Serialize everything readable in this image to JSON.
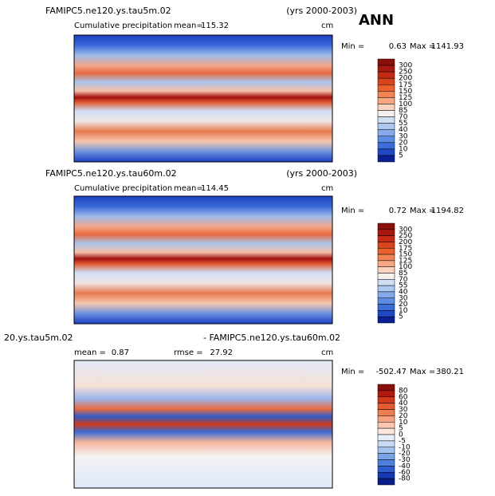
{
  "title": "ANN",
  "panels": [
    {
      "title_left": "FAMIPC5.ne120.ys.tau5m.02",
      "title_right": "(yrs 2000-2003)",
      "subtitle": "Cumulative precipitation",
      "stat1_label": "mean=",
      "stat1": 115.32,
      "units": "cm",
      "min_label": "Min =",
      "min": 0.63,
      "max_label": "Max =",
      "max": 1141.93,
      "colorbar": {
        "levels": [
          300,
          250,
          200,
          175,
          150,
          125,
          100,
          85,
          70,
          55,
          40,
          30,
          20,
          10,
          5
        ],
        "colors": [
          "#8a0f0a",
          "#a8180f",
          "#c52a14",
          "#d8441e",
          "#e8612f",
          "#f08454",
          "#f6a883",
          "#fad2bf",
          "#f5f0ee",
          "#cfdef5",
          "#adc8f0",
          "#86aae8",
          "#5d8ce0",
          "#3b6ed8",
          "#2048c4",
          "#0b1f95"
        ]
      }
    },
    {
      "title_left": "FAMIPC5.ne120.ys.tau60m.02",
      "title_right": "(yrs 2000-2003)",
      "subtitle": "Cumulative precipitation",
      "stat1_label": "mean=",
      "stat1": 114.45,
      "units": "cm",
      "min_label": "Min =",
      "min": 0.72,
      "max_label": "Max =",
      "max": 1194.82,
      "colorbar": {
        "levels": [
          300,
          250,
          200,
          175,
          150,
          125,
          100,
          85,
          70,
          55,
          40,
          30,
          20,
          10,
          5
        ],
        "colors": [
          "#8a0f0a",
          "#a8180f",
          "#c52a14",
          "#d8441e",
          "#e8612f",
          "#f08454",
          "#f6a883",
          "#fad2bf",
          "#f5f0ee",
          "#cfdef5",
          "#adc8f0",
          "#86aae8",
          "#5d8ce0",
          "#3b6ed8",
          "#2048c4",
          "#0b1f95"
        ]
      }
    },
    {
      "title_left": "20.ys.tau5m.02",
      "title_right": "- FAMIPC5.ne120.ys.tau60m.02",
      "stat1_label": "mean =",
      "stat1": 0.87,
      "stat2_label": "rmse =",
      "stat2": 27.92,
      "units": "cm",
      "min_label": "Min =",
      "min": -502.47,
      "max_label": "Max =",
      "max": 380.21,
      "colorbar": {
        "levels": [
          80,
          60,
          40,
          30,
          20,
          10,
          5,
          0,
          -5,
          -10,
          -20,
          -30,
          -40,
          -60,
          -80
        ],
        "colors": [
          "#8a0f0a",
          "#b01a10",
          "#d03a1a",
          "#e25a30",
          "#ee7d52",
          "#f5a282",
          "#fac6b0",
          "#fde6dc",
          "#e6eefb",
          "#c8d9f5",
          "#a3c0ee",
          "#7aa2e6",
          "#5080dc",
          "#2e5ccc",
          "#1638b0",
          "#0a1c88"
        ]
      }
    }
  ]
}
